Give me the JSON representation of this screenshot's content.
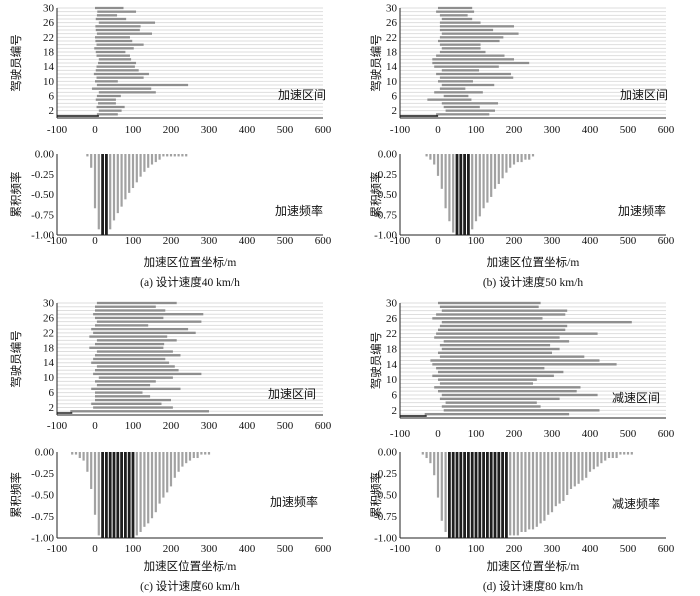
{
  "chart_data": [
    {
      "type": "bar",
      "panel": "a",
      "caption": "(a) 设计速度40 km/h",
      "interval_chart": {
        "tag": "加速区间",
        "ylabel": "驾驶员编号",
        "xlim": [
          -100,
          600
        ],
        "ylim": [
          0,
          30
        ],
        "xticks": [
          -100,
          0,
          100,
          200,
          300,
          400,
          500,
          600
        ],
        "yticks": [
          2,
          6,
          10,
          14,
          18,
          22,
          26,
          30
        ],
        "drivers": [
          1,
          2,
          3,
          4,
          5,
          6,
          7,
          8,
          9,
          10,
          11,
          12,
          13,
          14,
          15,
          16,
          17,
          18,
          19,
          20,
          21,
          22,
          23,
          24,
          25,
          26,
          27,
          28,
          29,
          30
        ],
        "start": [
          5,
          10,
          4,
          8,
          2,
          5,
          10,
          -8,
          5,
          0,
          4,
          -3,
          2,
          4,
          8,
          10,
          4,
          2,
          -2,
          4,
          1,
          0,
          5,
          2,
          1,
          10,
          2,
          5,
          6,
          0
        ],
        "end": [
          60,
          70,
          78,
          55,
          55,
          68,
          160,
          148,
          245,
          60,
          128,
          142,
          115,
          105,
          108,
          95,
          92,
          80,
          102,
          128,
          98,
          92,
          150,
          118,
          120,
          158,
          82,
          58,
          108,
          75
        ]
      },
      "frequency_chart": {
        "tag": "加速频率",
        "ylabel": "累积频率",
        "xlabel": "加速区位置坐标/m",
        "xlim": [
          -100,
          600
        ],
        "ylim": [
          -1.0,
          0.0
        ],
        "xticks": [
          -100,
          0,
          100,
          200,
          300,
          400,
          500,
          600
        ],
        "yticks": [
          "0.00",
          "-0.25",
          "-0.50",
          "-0.75",
          "-1.00"
        ],
        "x": [
          -20,
          -10,
          0,
          10,
          20,
          30,
          40,
          50,
          60,
          70,
          80,
          90,
          100,
          110,
          120,
          130,
          140,
          150,
          160,
          170,
          180,
          190,
          200,
          210,
          220,
          230,
          240
        ],
        "values": [
          -0.03,
          -0.17,
          -0.67,
          -0.93,
          -1.0,
          -1.0,
          -0.93,
          -0.82,
          -0.73,
          -0.65,
          -0.56,
          -0.48,
          -0.42,
          -0.35,
          -0.28,
          -0.22,
          -0.17,
          -0.13,
          -0.1,
          -0.07,
          -0.03,
          -0.03,
          -0.03,
          -0.03,
          -0.03,
          -0.03,
          -0.03
        ],
        "full_overlap_x": [
          20,
          30
        ]
      }
    },
    {
      "type": "bar",
      "panel": "b",
      "caption": "(b) 设计速度50 km/h",
      "interval_chart": {
        "tag": "加速区间",
        "ylabel": "驾驶员编号",
        "xlim": [
          -100,
          600
        ],
        "ylim": [
          0,
          30
        ],
        "xticks": [
          -100,
          0,
          100,
          200,
          300,
          400,
          500,
          600
        ],
        "yticks": [
          2,
          6,
          10,
          14,
          18,
          22,
          26,
          30
        ],
        "drivers": [
          1,
          2,
          3,
          4,
          5,
          6,
          7,
          8,
          9,
          10,
          11,
          12,
          13,
          14,
          15,
          16,
          17,
          18,
          19,
          20,
          21,
          22,
          23,
          24,
          25,
          26,
          27,
          28,
          29,
          30
        ],
        "start": [
          -5,
          20,
          15,
          10,
          -28,
          15,
          -10,
          5,
          10,
          0,
          5,
          -5,
          10,
          -10,
          -15,
          -15,
          -5,
          5,
          10,
          5,
          0,
          5,
          10,
          5,
          5,
          5,
          10,
          5,
          -5,
          0
        ],
        "end": [
          135,
          150,
          110,
          158,
          88,
          80,
          118,
          72,
          148,
          92,
          198,
          192,
          108,
          160,
          240,
          200,
          175,
          125,
          112,
          112,
          162,
          172,
          212,
          145,
          200,
          112,
          90,
          78,
          95,
          90
        ]
      },
      "frequency_chart": {
        "tag": "加速频率",
        "ylabel": "累积频率",
        "xlabel": "加速区位置坐标/m",
        "xlim": [
          -100,
          600
        ],
        "ylim": [
          -1.0,
          0.0
        ],
        "xticks": [
          -100,
          0,
          100,
          200,
          300,
          400,
          500,
          600
        ],
        "yticks": [
          "0.00",
          "-0.25",
          "-0.50",
          "-0.75",
          "-1.00"
        ],
        "x": [
          -30,
          -20,
          -10,
          0,
          10,
          20,
          30,
          40,
          50,
          60,
          70,
          80,
          90,
          100,
          110,
          120,
          130,
          140,
          150,
          160,
          170,
          180,
          190,
          200,
          210,
          220,
          230,
          240,
          250
        ],
        "values": [
          -0.03,
          -0.07,
          -0.13,
          -0.27,
          -0.43,
          -0.67,
          -0.83,
          -0.97,
          -1.0,
          -1.0,
          -1.0,
          -1.0,
          -0.93,
          -0.83,
          -0.77,
          -0.67,
          -0.6,
          -0.53,
          -0.43,
          -0.37,
          -0.3,
          -0.23,
          -0.17,
          -0.13,
          -0.1,
          -0.1,
          -0.07,
          -0.07,
          -0.03
        ],
        "full_overlap_x": [
          50,
          60,
          70,
          80
        ]
      }
    },
    {
      "type": "bar",
      "panel": "c",
      "caption": "(c) 设计速度60 km/h",
      "interval_chart": {
        "tag": "加速区间",
        "ylabel": "驾驶员编号",
        "xlim": [
          -100,
          600
        ],
        "ylim": [
          0,
          30
        ],
        "xticks": [
          -100,
          0,
          100,
          200,
          300,
          400,
          500,
          600
        ],
        "yticks": [
          2,
          6,
          10,
          14,
          18,
          22,
          26,
          30
        ],
        "drivers": [
          1,
          2,
          3,
          4,
          5,
          6,
          7,
          8,
          9,
          10,
          11,
          12,
          13,
          14,
          15,
          16,
          17,
          18,
          19,
          20,
          21,
          22,
          23,
          24,
          25,
          26,
          27,
          28,
          29,
          30
        ],
        "start": [
          -65,
          -5,
          -10,
          0,
          0,
          0,
          -10,
          5,
          0,
          10,
          -5,
          0,
          5,
          -10,
          -5,
          0,
          5,
          -15,
          0,
          5,
          -15,
          -5,
          -10,
          0,
          5,
          0,
          -5,
          0,
          0,
          5
        ],
        "end": [
          300,
          205,
          175,
          200,
          145,
          125,
          225,
          145,
          160,
          205,
          280,
          220,
          210,
          195,
          185,
          225,
          205,
          180,
          182,
          215,
          190,
          265,
          245,
          140,
          280,
          180,
          285,
          185,
          160,
          215
        ]
      },
      "frequency_chart": {
        "tag": "加速频率",
        "ylabel": "累积频率",
        "xlabel": "加速区位置坐标/m",
        "xlim": [
          -100,
          600
        ],
        "ylim": [
          -1.0,
          0.0
        ],
        "xticks": [
          -100,
          0,
          100,
          200,
          300,
          400,
          500,
          600
        ],
        "yticks": [
          "0.00",
          "-0.25",
          "-0.50",
          "-0.75",
          "-1.00"
        ],
        "x": [
          -60,
          -50,
          -40,
          -30,
          -20,
          -10,
          0,
          10,
          20,
          30,
          40,
          50,
          60,
          70,
          80,
          90,
          100,
          110,
          120,
          130,
          140,
          150,
          160,
          170,
          180,
          190,
          200,
          210,
          220,
          230,
          240,
          250,
          260,
          270,
          280,
          290,
          300
        ],
        "values": [
          -0.03,
          -0.03,
          -0.07,
          -0.1,
          -0.23,
          -0.43,
          -0.73,
          -0.97,
          -1.0,
          -1.0,
          -1.0,
          -1.0,
          -1.0,
          -1.0,
          -1.0,
          -1.0,
          -1.0,
          -0.97,
          -0.93,
          -0.87,
          -0.83,
          -0.77,
          -0.7,
          -0.6,
          -0.53,
          -0.47,
          -0.4,
          -0.3,
          -0.23,
          -0.17,
          -0.13,
          -0.1,
          -0.07,
          -0.07,
          -0.03,
          -0.03,
          -0.03
        ],
        "full_overlap_x": [
          20,
          30,
          40,
          50,
          60,
          70,
          80,
          90,
          100
        ]
      }
    },
    {
      "type": "bar",
      "panel": "d",
      "caption": "(d) 设计速度80 km/h",
      "interval_chart": {
        "tag": "减速区间",
        "ylabel": "驾驶员编号",
        "xlim": [
          -100,
          600
        ],
        "ylim": [
          0,
          30
        ],
        "xticks": [
          -100,
          0,
          100,
          200,
          300,
          400,
          500,
          600
        ],
        "yticks": [
          2,
          6,
          10,
          14,
          18,
          22,
          26,
          30
        ],
        "drivers": [
          1,
          2,
          3,
          4,
          5,
          6,
          7,
          8,
          9,
          10,
          11,
          12,
          13,
          14,
          15,
          16,
          17,
          18,
          19,
          20,
          21,
          22,
          23,
          24,
          25,
          26,
          27,
          28,
          29,
          30
        ],
        "start": [
          -35,
          15,
          10,
          20,
          5,
          10,
          0,
          -10,
          5,
          0,
          -15,
          0,
          -5,
          -15,
          -20,
          5,
          0,
          10,
          5,
          15,
          -10,
          -5,
          0,
          5,
          10,
          -15,
          -5,
          10,
          5,
          0
        ],
        "end": [
          345,
          425,
          270,
          260,
          320,
          420,
          365,
          375,
          250,
          260,
          305,
          330,
          280,
          470,
          425,
          385,
          300,
          320,
          295,
          345,
          320,
          420,
          335,
          340,
          510,
          275,
          335,
          340,
          265,
          270
        ]
      },
      "frequency_chart": {
        "tag": "减速频率",
        "ylabel": "累积频率",
        "xlabel": "加速区位置坐标/m",
        "xlim": [
          -100,
          600
        ],
        "ylim": [
          -1.0,
          0.0
        ],
        "xticks": [
          -100,
          0,
          100,
          200,
          300,
          400,
          500,
          600
        ],
        "yticks": [
          "0.00",
          "-0.25",
          "-0.50",
          "-0.75",
          "-1.00"
        ],
        "x": [
          -40,
          -30,
          -20,
          -10,
          0,
          10,
          20,
          30,
          40,
          50,
          60,
          70,
          80,
          90,
          100,
          110,
          120,
          130,
          140,
          150,
          160,
          170,
          180,
          190,
          200,
          210,
          220,
          230,
          240,
          250,
          260,
          270,
          280,
          290,
          300,
          310,
          320,
          330,
          340,
          350,
          360,
          370,
          380,
          390,
          400,
          410,
          420,
          430,
          440,
          450,
          460,
          470,
          480,
          490,
          500,
          510
        ],
        "values": [
          -0.03,
          -0.07,
          -0.13,
          -0.27,
          -0.53,
          -0.8,
          -0.93,
          -1.0,
          -1.0,
          -1.0,
          -1.0,
          -1.0,
          -1.0,
          -1.0,
          -1.0,
          -1.0,
          -1.0,
          -1.0,
          -1.0,
          -1.0,
          -1.0,
          -1.0,
          -1.0,
          -0.97,
          -0.97,
          -0.97,
          -0.93,
          -0.93,
          -0.9,
          -0.9,
          -0.87,
          -0.83,
          -0.8,
          -0.73,
          -0.7,
          -0.63,
          -0.6,
          -0.57,
          -0.5,
          -0.43,
          -0.4,
          -0.37,
          -0.33,
          -0.3,
          -0.23,
          -0.2,
          -0.17,
          -0.13,
          -0.1,
          -0.07,
          -0.07,
          -0.07,
          -0.03,
          -0.03,
          -0.03,
          -0.03
        ],
        "full_overlap_x": [
          30,
          40,
          50,
          60,
          70,
          80,
          90,
          100,
          110,
          120,
          130,
          140,
          150,
          160,
          170,
          180
        ]
      }
    }
  ]
}
